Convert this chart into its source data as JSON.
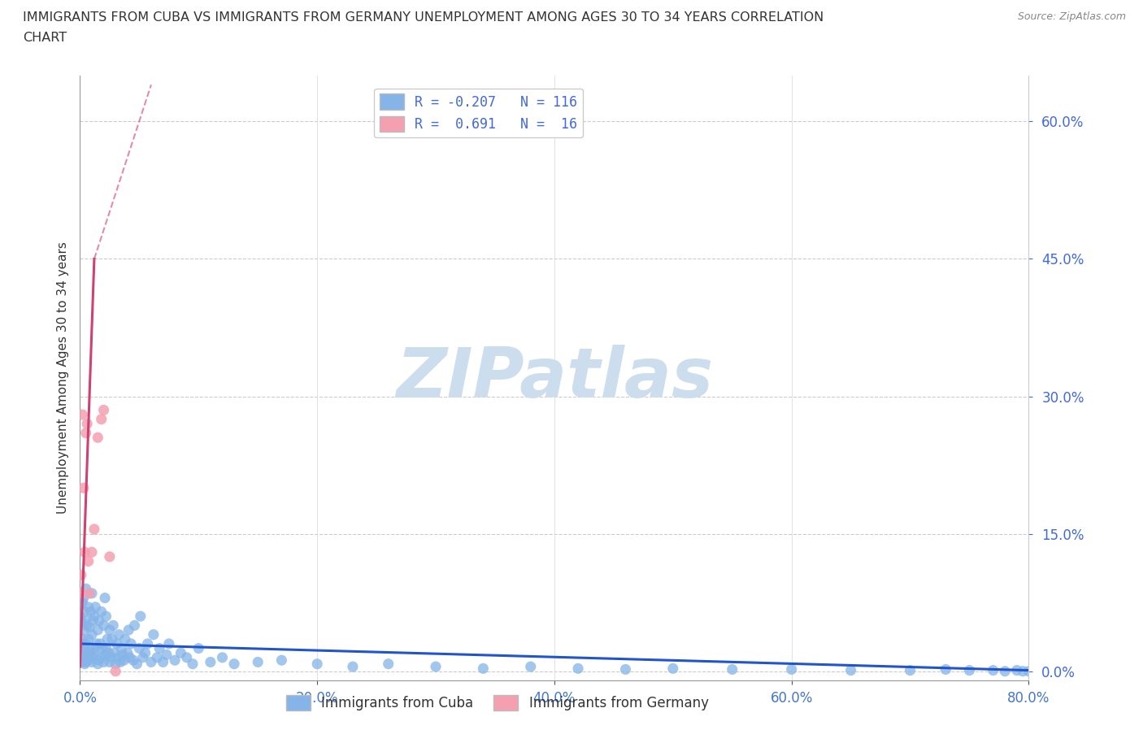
{
  "title_line1": "IMMIGRANTS FROM CUBA VS IMMIGRANTS FROM GERMANY UNEMPLOYMENT AMONG AGES 30 TO 34 YEARS CORRELATION",
  "title_line2": "CHART",
  "source": "Source: ZipAtlas.com",
  "ylabel_label": "Unemployment Among Ages 30 to 34 years",
  "xlim": [
    0.0,
    0.8
  ],
  "ylim": [
    -0.01,
    0.65
  ],
  "xtick_vals": [
    0.0,
    0.2,
    0.4,
    0.6,
    0.8
  ],
  "ytick_vals": [
    0.0,
    0.15,
    0.3,
    0.45,
    0.6
  ],
  "legend_r_cuba": "-0.207",
  "legend_n_cuba": "116",
  "legend_r_germany": "0.691",
  "legend_n_germany": "16",
  "color_cuba": "#85b4e8",
  "color_germany": "#f4a0b0",
  "trendline_cuba_color": "#2255cc",
  "trendline_germany_color": "#d04070",
  "watermark": "ZIPatlas",
  "watermark_color_zip": "#c0d4ea",
  "watermark_color_atlas": "#a8c8e0",
  "cuba_x": [
    0.0,
    0.0,
    0.001,
    0.001,
    0.002,
    0.002,
    0.002,
    0.003,
    0.003,
    0.003,
    0.004,
    0.004,
    0.004,
    0.005,
    0.005,
    0.005,
    0.005,
    0.006,
    0.006,
    0.007,
    0.007,
    0.007,
    0.008,
    0.008,
    0.009,
    0.009,
    0.01,
    0.01,
    0.01,
    0.011,
    0.011,
    0.012,
    0.012,
    0.013,
    0.013,
    0.014,
    0.015,
    0.015,
    0.016,
    0.016,
    0.017,
    0.018,
    0.018,
    0.019,
    0.02,
    0.02,
    0.021,
    0.021,
    0.022,
    0.022,
    0.023,
    0.024,
    0.025,
    0.025,
    0.026,
    0.027,
    0.028,
    0.029,
    0.03,
    0.031,
    0.032,
    0.033,
    0.034,
    0.035,
    0.036,
    0.037,
    0.038,
    0.04,
    0.041,
    0.042,
    0.043,
    0.045,
    0.046,
    0.048,
    0.05,
    0.051,
    0.053,
    0.055,
    0.057,
    0.06,
    0.062,
    0.065,
    0.067,
    0.07,
    0.073,
    0.075,
    0.08,
    0.085,
    0.09,
    0.095,
    0.1,
    0.11,
    0.12,
    0.13,
    0.15,
    0.17,
    0.2,
    0.23,
    0.26,
    0.3,
    0.34,
    0.38,
    0.42,
    0.46,
    0.5,
    0.55,
    0.6,
    0.65,
    0.7,
    0.73,
    0.75,
    0.77,
    0.78,
    0.79,
    0.795,
    0.8
  ],
  "cuba_y": [
    0.03,
    0.06,
    0.02,
    0.055,
    0.01,
    0.035,
    0.075,
    0.015,
    0.045,
    0.08,
    0.008,
    0.025,
    0.065,
    0.01,
    0.03,
    0.055,
    0.09,
    0.02,
    0.05,
    0.012,
    0.035,
    0.07,
    0.018,
    0.048,
    0.022,
    0.065,
    0.01,
    0.04,
    0.085,
    0.015,
    0.055,
    0.02,
    0.06,
    0.025,
    0.07,
    0.03,
    0.008,
    0.045,
    0.012,
    0.055,
    0.03,
    0.015,
    0.065,
    0.025,
    0.01,
    0.05,
    0.018,
    0.08,
    0.025,
    0.06,
    0.035,
    0.02,
    0.01,
    0.045,
    0.015,
    0.035,
    0.05,
    0.02,
    0.008,
    0.03,
    0.015,
    0.04,
    0.01,
    0.025,
    0.018,
    0.012,
    0.035,
    0.02,
    0.045,
    0.015,
    0.03,
    0.012,
    0.05,
    0.008,
    0.025,
    0.06,
    0.015,
    0.02,
    0.03,
    0.01,
    0.04,
    0.015,
    0.025,
    0.01,
    0.018,
    0.03,
    0.012,
    0.02,
    0.015,
    0.008,
    0.025,
    0.01,
    0.015,
    0.008,
    0.01,
    0.012,
    0.008,
    0.005,
    0.008,
    0.005,
    0.003,
    0.005,
    0.003,
    0.002,
    0.003,
    0.002,
    0.002,
    0.001,
    0.001,
    0.002,
    0.001,
    0.001,
    0.0,
    0.001,
    0.0,
    0.0
  ],
  "germany_x": [
    0.0,
    0.001,
    0.002,
    0.003,
    0.004,
    0.005,
    0.006,
    0.007,
    0.008,
    0.01,
    0.012,
    0.015,
    0.018,
    0.02,
    0.025,
    0.03
  ],
  "germany_y": [
    0.085,
    0.105,
    0.28,
    0.2,
    0.13,
    0.26,
    0.27,
    0.12,
    0.085,
    0.13,
    0.155,
    0.255,
    0.275,
    0.285,
    0.125,
    0.0
  ],
  "cuba_trend_x0": 0.0,
  "cuba_trend_x1": 0.8,
  "cuba_trend_y0": 0.03,
  "cuba_trend_y1": 0.001,
  "germany_trend_solid_x0": 0.0,
  "germany_trend_solid_x1": 0.012,
  "germany_trend_solid_y0": 0.005,
  "germany_trend_solid_y1": 0.45,
  "germany_trend_dash_x0": 0.012,
  "germany_trend_dash_x1": 0.06,
  "germany_trend_dash_y0": 0.45,
  "germany_trend_dash_y1": 0.64
}
